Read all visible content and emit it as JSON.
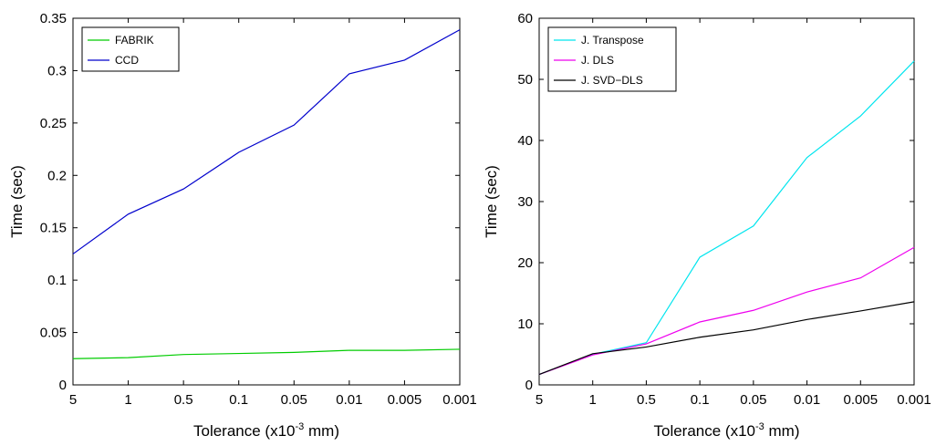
{
  "chart_data": [
    {
      "type": "line",
      "x": [
        "5",
        "1",
        "0.5",
        "0.1",
        "0.05",
        "0.01",
        "0.005",
        "0.001"
      ],
      "xlabel": "Tolerance (x10",
      "xlabel_sup": "-3",
      "xlabel_tail": " mm)",
      "ylabel": "Time (sec)",
      "ylim": [
        0,
        0.35
      ],
      "yticks": [
        0,
        0.05,
        0.1,
        0.15,
        0.2,
        0.25,
        0.3,
        0.35
      ],
      "ytick_labels": [
        "0",
        "0.05",
        "0.1",
        "0.15",
        "0.2",
        "0.25",
        "0.3",
        "0.35"
      ],
      "legend_position": "top-left",
      "grid": false,
      "series": [
        {
          "name": "FABRIK",
          "color": "#00cc00",
          "values": [
            0.025,
            0.026,
            0.029,
            0.03,
            0.031,
            0.033,
            0.033,
            0.034
          ]
        },
        {
          "name": "CCD",
          "color": "#0000cc",
          "values": [
            0.125,
            0.163,
            0.187,
            0.222,
            0.248,
            0.297,
            0.31,
            0.339
          ]
        }
      ]
    },
    {
      "type": "line",
      "x": [
        "5",
        "1",
        "0.5",
        "0.1",
        "0.05",
        "0.01",
        "0.005",
        "0.001"
      ],
      "xlabel": "Tolerance (x10",
      "xlabel_sup": "-3",
      "xlabel_tail": " mm)",
      "ylabel": "Time (sec)",
      "ylim": [
        0,
        60
      ],
      "yticks": [
        0,
        10,
        20,
        30,
        40,
        50,
        60
      ],
      "ytick_labels": [
        "0",
        "10",
        "20",
        "30",
        "40",
        "50",
        "60"
      ],
      "legend_position": "top-left",
      "grid": false,
      "series": [
        {
          "name": "J. Transpose",
          "color": "#00e5ee",
          "values": [
            1.7,
            5.0,
            6.9,
            20.9,
            26.0,
            37.2,
            44.0,
            53.0
          ]
        },
        {
          "name": "J. DLS",
          "color": "#ee00ee",
          "values": [
            1.7,
            4.9,
            6.7,
            10.3,
            12.2,
            15.2,
            17.5,
            22.5
          ]
        },
        {
          "name": "J. SVD−DLS",
          "color": "#000000",
          "values": [
            1.7,
            5.1,
            6.2,
            7.8,
            9.0,
            10.7,
            12.1,
            13.6
          ]
        }
      ]
    }
  ]
}
